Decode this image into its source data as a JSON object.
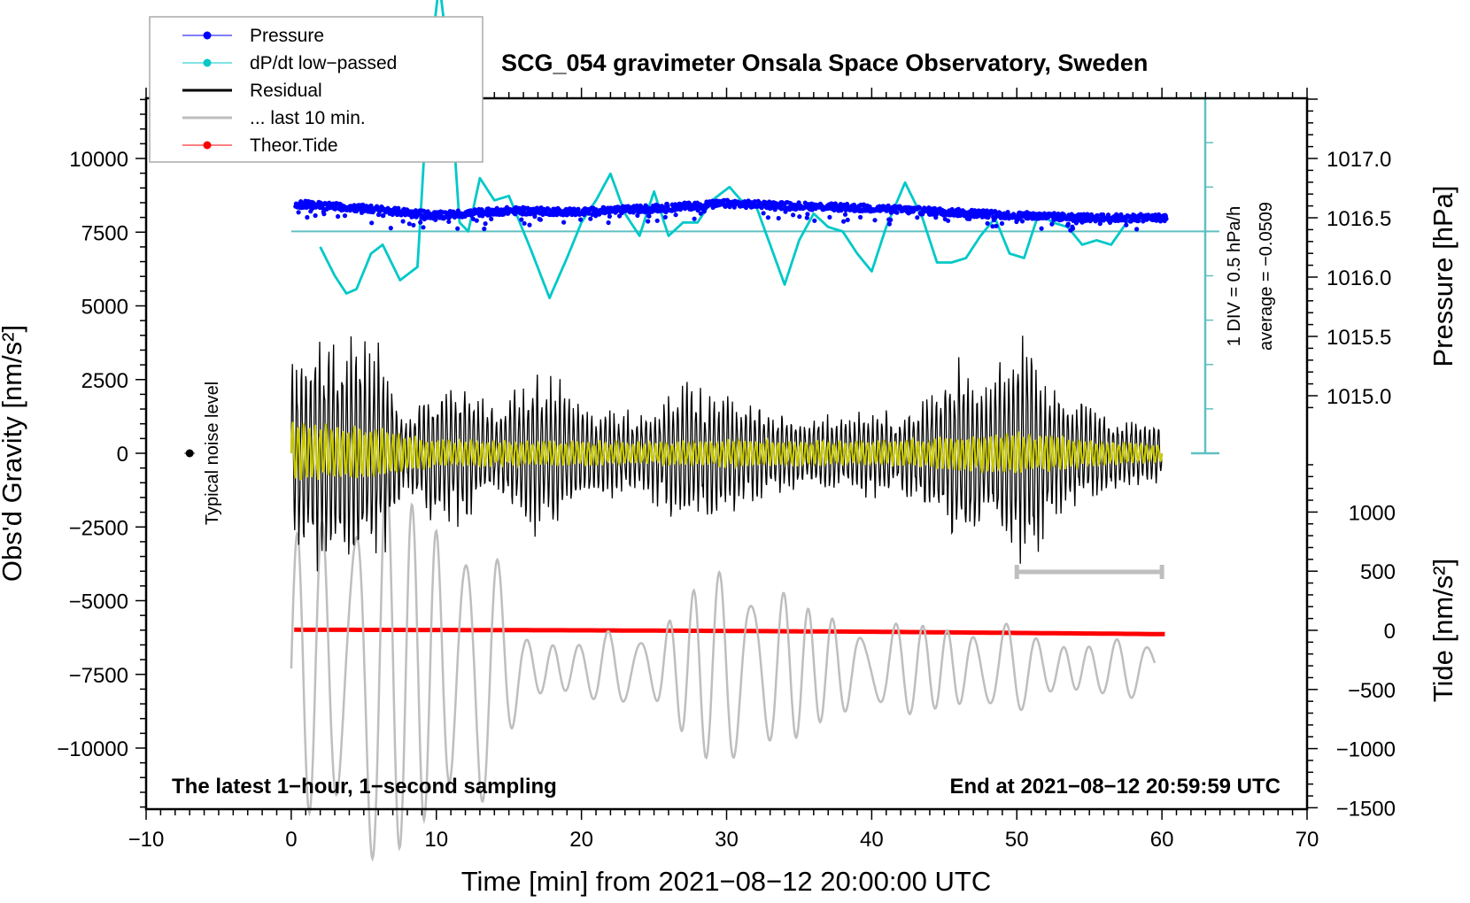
{
  "chart_data": {
    "type": "line",
    "title": "SCG_054 gravimeter Onsala Space Observatory, Sweden",
    "xlabel": "Time [min] from 2021−08−12 20:00:00 UTC",
    "ylabel_left": "Obs'd Gravity [nm/s²]",
    "ylabel_right_top": "Pressure [hPa]",
    "ylabel_right_bottom": "Tide [nm/s²]",
    "xlim": [
      -10,
      70
    ],
    "xticks": [
      -10,
      0,
      10,
      20,
      30,
      40,
      50,
      60,
      70
    ],
    "xtick_labels": [
      "−10",
      "0",
      "10",
      "20",
      "30",
      "40",
      "50",
      "60",
      "70"
    ],
    "ylim_left": [
      -12000,
      12000
    ],
    "yticks_left": [
      10000,
      7500,
      5000,
      2500,
      0,
      -2500,
      -5000,
      -7500,
      -10000
    ],
    "ytick_labels_left": [
      "10000",
      "7500",
      "5000",
      "2500",
      "0",
      "−2500",
      "−5000",
      "−7500",
      "−10000"
    ],
    "pressure_axis": {
      "ticks": [
        1017.0,
        1016.5,
        1016.0,
        1015.5,
        1015.0
      ],
      "tick_labels": [
        "1017.0",
        "1016.5",
        "1016.0",
        "1015.5",
        "1015.0"
      ]
    },
    "tide_axis": {
      "ticks": [
        1000,
        500,
        0,
        -500,
        -1000,
        -1500
      ],
      "tick_labels": [
        "1000",
        "500",
        "0",
        "−500",
        "−1000",
        "−1500"
      ]
    },
    "dpdt_axis": {
      "label_div": "1 DIV = 0.5 hPa/h",
      "label_avg": "average = −0.0509",
      "divisions": 8,
      "zero_div": 5
    },
    "legend": {
      "position": "top-left",
      "entries": [
        {
          "label": "Pressure",
          "color": "#0000ff",
          "marker": "dot"
        },
        {
          "label": "dP/dt low−passed",
          "color": "#00c8c8",
          "marker": "dot"
        },
        {
          "label": "Residual",
          "color": "#000000",
          "marker": "none"
        },
        {
          "label": "... last 10 min.",
          "color": "#bebebe",
          "marker": "none"
        },
        {
          "label": "Theor.Tide",
          "color": "#ff0000",
          "marker": "dot"
        }
      ]
    },
    "annotations": {
      "bottom_left": "The latest 1−hour, 1−second sampling",
      "bottom_right": "End at 2021−08−12 20:59:59 UTC",
      "noise_label": "Typical noise level",
      "noise_point": {
        "x": -7,
        "y": 0
      }
    },
    "last10_bracket": {
      "x_start": 50,
      "x_end": 60
    },
    "series": [
      {
        "name": "Pressure",
        "axis": "pressure",
        "color": "#0000ff",
        "x": [
          0,
          5,
          10,
          15,
          20,
          25,
          30,
          35,
          40,
          45,
          50,
          55,
          60
        ],
        "values": [
          1016.62,
          1016.58,
          1016.52,
          1016.56,
          1016.55,
          1016.58,
          1016.62,
          1016.6,
          1016.58,
          1016.55,
          1016.52,
          1016.5,
          1016.5
        ]
      },
      {
        "name": "dP/dt low-passed",
        "axis": "dpdt_div",
        "color": "#00c8c8",
        "x": [
          2,
          3,
          3.8,
          4.5,
          5.5,
          6.3,
          7.5,
          8.7,
          9.5,
          10.2,
          10.8,
          11.6,
          12.2,
          13,
          14,
          15,
          16.5,
          17.8,
          19,
          20,
          21,
          22,
          23,
          24,
          25,
          26,
          27,
          28,
          29,
          30.2,
          31,
          32,
          33,
          34,
          35,
          36,
          37,
          38,
          39,
          40,
          41,
          42.3,
          43.5,
          44.5,
          45.5,
          46.5,
          47.5,
          48.5,
          49.5,
          50.5,
          51.5,
          52.5,
          53.5,
          54.5,
          55.5,
          56.5,
          58
        ],
        "values": [
          -0.35,
          -1.0,
          -1.4,
          -1.3,
          -0.5,
          -0.3,
          -1.1,
          -0.8,
          3.6,
          5.6,
          4.0,
          0.2,
          0.0,
          1.2,
          0.7,
          0.8,
          -0.4,
          -1.5,
          -0.6,
          0.2,
          0.7,
          1.3,
          0.4,
          -0.1,
          0.9,
          -0.1,
          0.2,
          0.2,
          0.7,
          1.0,
          0.7,
          0.6,
          -0.3,
          -1.2,
          -0.2,
          0.4,
          0.1,
          0.0,
          -0.5,
          -0.9,
          0.1,
          1.1,
          0.3,
          -0.7,
          -0.7,
          -0.6,
          -0.1,
          0.3,
          -0.5,
          -0.6,
          0.4,
          0.2,
          0.1,
          -0.3,
          -0.2,
          -0.3,
          0.4
        ]
      },
      {
        "name": "Residual",
        "axis": "gravity",
        "color": "#000000",
        "envelope_x": [
          0,
          2,
          4,
          6,
          8,
          10,
          12,
          14,
          16,
          18,
          20,
          22,
          24,
          26,
          27,
          28,
          30,
          32,
          34,
          36,
          38,
          40,
          42,
          44,
          46,
          48,
          50,
          51,
          52,
          54,
          56,
          58,
          60
        ],
        "envelope_amplitude": [
          3500,
          4500,
          4500,
          4000,
          1500,
          2800,
          2500,
          1600,
          3000,
          2800,
          1900,
          1600,
          1500,
          2100,
          3000,
          2200,
          2500,
          1800,
          1500,
          1300,
          1500,
          1700,
          1400,
          2300,
          3500,
          2700,
          4000,
          4500,
          2600,
          2000,
          1700,
          1300,
          1100
        ]
      },
      {
        "name": "Residual (high-pass overlay)",
        "axis": "gravity",
        "color": "#c8c800",
        "envelope_x": [
          0,
          5,
          10,
          15,
          20,
          25,
          30,
          35,
          40,
          45,
          50,
          55,
          60
        ],
        "envelope_amplitude": [
          1100,
          1000,
          500,
          450,
          450,
          400,
          500,
          450,
          450,
          600,
          800,
          500,
          300
        ]
      },
      {
        "name": "... last 10 min.",
        "axis": "gravity",
        "color": "#bebebe",
        "x_range_displayed": [
          0,
          60
        ],
        "represents_minutes": [
          50,
          60
        ],
        "envelope_x": [
          0,
          5,
          10,
          13,
          16,
          20,
          25,
          28,
          32,
          36,
          40,
          44,
          48,
          52,
          56,
          60
        ],
        "envelope_amplitude": [
          3500,
          5500,
          5000,
          4200,
          1200,
          900,
          1200,
          2500,
          2800,
          1500,
          1200,
          1300,
          1400,
          1000,
          900,
          700
        ],
        "center": -7300
      },
      {
        "name": "Theor.Tide",
        "axis": "tide",
        "color": "#ff0000",
        "x": [
          0,
          10,
          20,
          30,
          40,
          50,
          60
        ],
        "values": [
          5,
          3,
          0,
          -5,
          -12,
          -22,
          -32
        ]
      }
    ]
  }
}
